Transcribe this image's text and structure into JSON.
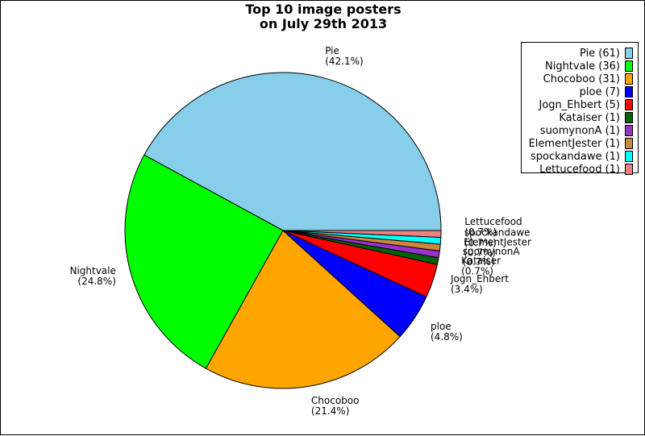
{
  "chart_data": {
    "type": "pie",
    "title": [
      "Top 10 image posters",
      "on July 29th 2013"
    ],
    "legend_position": "top-right",
    "slices": [
      {
        "label": "Pie",
        "value": 61,
        "percent_label": "(42.1%)",
        "legend": "Pie (61)",
        "color": "#87ceeb"
      },
      {
        "label": "Nightvale",
        "value": 36,
        "percent_label": "(24.8%)",
        "legend": "Nightvale (36)",
        "color": "#00ff00"
      },
      {
        "label": "Chocoboo",
        "value": 31,
        "percent_label": "(21.4%)",
        "legend": "Chocoboo (31)",
        "color": "#ffa500"
      },
      {
        "label": "ploe",
        "value": 7,
        "percent_label": "(4.8%)",
        "legend": "ploe (7)",
        "color": "#0000ff"
      },
      {
        "label": "Jogn_Ehbert",
        "value": 5,
        "percent_label": "(3.4%)",
        "legend": "Jogn_Ehbert (5)",
        "color": "#ff0000"
      },
      {
        "label": "Kataiser",
        "value": 1,
        "percent_label": "(0.7%)",
        "legend": "Kataiser (1)",
        "color": "#006400"
      },
      {
        "label": "suomynonA",
        "value": 1,
        "percent_label": "(0.7%)",
        "legend": "suomynonA (1)",
        "color": "#9932cc"
      },
      {
        "label": "ElementJester",
        "value": 1,
        "percent_label": "(0.7%)",
        "legend": "ElementJester (1)",
        "color": "#cd853f"
      },
      {
        "label": "spockandawe",
        "value": 1,
        "percent_label": "(0.7%)",
        "legend": "spockandawe (1)",
        "color": "#00ffff"
      },
      {
        "label": "Lettucefood",
        "value": 1,
        "percent_label": "(0.7%)",
        "legend": "Lettucefood (1)",
        "color": "#f08080"
      }
    ]
  }
}
